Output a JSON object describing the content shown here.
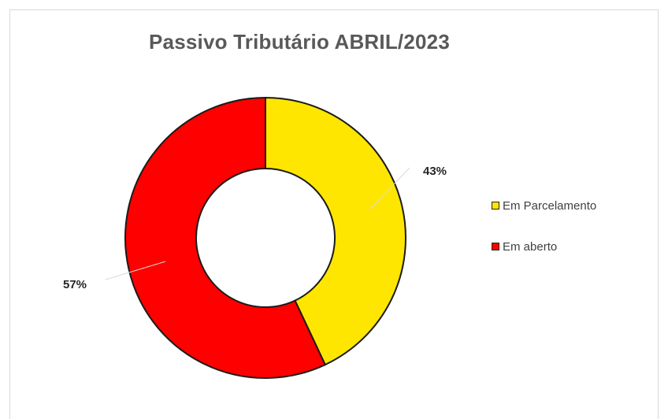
{
  "chart_data": {
    "type": "pie",
    "variant": "donut",
    "title": "Passivo Tributário ABRIL/2023",
    "categories": [
      "Em Parcelamento",
      "Em aberto"
    ],
    "values": [
      43,
      57
    ],
    "data_labels": [
      "43%",
      "57%"
    ],
    "colors": [
      "#FFE600",
      "#FF0000"
    ],
    "legend_position": "right",
    "start_angle_degrees": 0,
    "direction": "clockwise"
  },
  "legend": {
    "items": [
      {
        "label": "Em Parcelamento",
        "color": "#FFE600"
      },
      {
        "label": "Em aberto",
        "color": "#FF0000"
      }
    ]
  }
}
